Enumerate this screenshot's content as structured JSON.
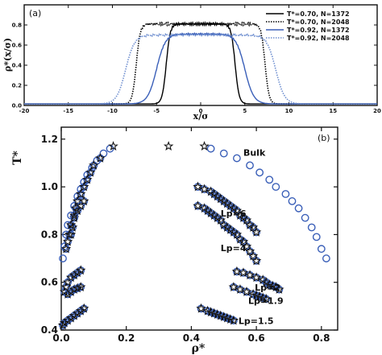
{
  "chart_data": [
    {
      "type": "line",
      "panel_label": "(a)",
      "xlabel": "x/σ",
      "ylabel": "ρ*(x/σ)",
      "xlim": [
        -20,
        20
      ],
      "ylim": [
        0,
        1.0
      ],
      "xticks": [
        "-20",
        "-15",
        "-10",
        "-5",
        "0",
        "5",
        "10",
        "15",
        "20"
      ],
      "yticks": [
        "0.0",
        "0.2",
        "0.4",
        "0.6",
        "0.8"
      ],
      "legend_position": "top-right",
      "series": [
        {
          "name": "T*=0.70, N=1372",
          "color": "#000000",
          "style": "solid",
          "plateau": 0.81,
          "x_left": -3.9,
          "x_right": 3.9,
          "width": 0.45,
          "noise": 0.012
        },
        {
          "name": "T*=0.70, N=2048",
          "color": "#000000",
          "style": "dotted",
          "plateau": 0.81,
          "x_left": -7.3,
          "x_right": 7.3,
          "width": 0.45,
          "noise": 0.012
        },
        {
          "name": "T*=0.92, N=1372",
          "color": "#3a5fb8",
          "style": "solid",
          "plateau": 0.71,
          "x_left": -5.0,
          "x_right": 5.0,
          "width": 1.0,
          "noise": 0.008
        },
        {
          "name": "T*=0.92, N=2048",
          "color": "#6f8fd0",
          "style": "dotted",
          "plateau": 0.7,
          "x_left": -8.5,
          "x_right": 8.5,
          "width": 1.0,
          "noise": 0.008
        }
      ]
    },
    {
      "type": "scatter",
      "panel_label": "(b)",
      "xlabel": "ρ*",
      "ylabel": "T*",
      "xlim": [
        0,
        0.85
      ],
      "ylim": [
        0.4,
        1.25
      ],
      "xticks": [
        "0.0",
        "0.2",
        "0.4",
        "0.6",
        "0.8"
      ],
      "yticks": [
        "0.4",
        "0.6",
        "0.8",
        "1.0",
        "1.2"
      ],
      "annotations": [
        {
          "text": "Bulk",
          "x": 0.56,
          "y": 1.13
        },
        {
          "text": "Lp=6",
          "x": 0.49,
          "y": 0.875
        },
        {
          "text": "Lp=4",
          "x": 0.49,
          "y": 0.73
        },
        {
          "text": "Lp=2",
          "x": 0.595,
          "y": 0.565
        },
        {
          "text": "Lp=1.9",
          "x": 0.575,
          "y": 0.51
        },
        {
          "text": "Lp=1.5",
          "x": 0.545,
          "y": 0.425
        }
      ],
      "series": [
        {
          "name": "Bulk",
          "marker": "circle",
          "color": "#3a5fb8",
          "points": [
            [
              0.005,
              0.7
            ],
            [
              0.01,
              0.75
            ],
            [
              0.015,
              0.8
            ],
            [
              0.02,
              0.84
            ],
            [
              0.03,
              0.88
            ],
            [
              0.04,
              0.92
            ],
            [
              0.05,
              0.96
            ],
            [
              0.06,
              0.99
            ],
            [
              0.07,
              1.02
            ],
            [
              0.08,
              1.05
            ],
            [
              0.095,
              1.08
            ],
            [
              0.11,
              1.11
            ],
            [
              0.13,
              1.14
            ],
            [
              0.15,
              1.16
            ],
            [
              0.46,
              1.16
            ],
            [
              0.5,
              1.14
            ],
            [
              0.54,
              1.12
            ],
            [
              0.58,
              1.09
            ],
            [
              0.61,
              1.06
            ],
            [
              0.64,
              1.03
            ],
            [
              0.66,
              1.0
            ],
            [
              0.69,
              0.97
            ],
            [
              0.71,
              0.94
            ],
            [
              0.73,
              0.91
            ],
            [
              0.75,
              0.87
            ],
            [
              0.77,
              0.83
            ],
            [
              0.785,
              0.79
            ],
            [
              0.8,
              0.74
            ],
            [
              0.815,
              0.7
            ]
          ]
        },
        {
          "name": "Bulk-star",
          "marker": "star",
          "color": "#111111",
          "points": [
            [
              0.16,
              1.17
            ],
            [
              0.33,
              1.17
            ],
            [
              0.44,
              1.17
            ]
          ]
        },
        {
          "name": "Lp=6",
          "marker": "circle-star",
          "color": "#3a5fb8",
          "points": [
            [
              0.03,
              0.8
            ],
            [
              0.035,
              0.83
            ],
            [
              0.04,
              0.87
            ],
            [
              0.045,
              0.91
            ],
            [
              0.05,
              0.94
            ],
            [
              0.06,
              0.97
            ],
            [
              0.07,
              1.0
            ],
            [
              0.08,
              1.03
            ],
            [
              0.09,
              1.06
            ],
            [
              0.1,
              1.09
            ],
            [
              0.12,
              1.12
            ],
            [
              0.42,
              1.0
            ],
            [
              0.44,
              0.99
            ],
            [
              0.46,
              0.98
            ],
            [
              0.47,
              0.97
            ],
            [
              0.48,
              0.96
            ],
            [
              0.49,
              0.95
            ],
            [
              0.5,
              0.94
            ],
            [
              0.51,
              0.93
            ],
            [
              0.52,
              0.92
            ],
            [
              0.53,
              0.91
            ],
            [
              0.54,
              0.9
            ],
            [
              0.55,
              0.88
            ],
            [
              0.56,
              0.87
            ],
            [
              0.57,
              0.86
            ],
            [
              0.58,
              0.84
            ],
            [
              0.59,
              0.83
            ],
            [
              0.6,
              0.81
            ]
          ]
        },
        {
          "name": "Lp=4",
          "marker": "circle-star",
          "color": "#3a5fb8",
          "points": [
            [
              0.015,
              0.74
            ],
            [
              0.02,
              0.77
            ],
            [
              0.025,
              0.8
            ],
            [
              0.03,
              0.84
            ],
            [
              0.04,
              0.88
            ],
            [
              0.05,
              0.9
            ],
            [
              0.06,
              0.92
            ],
            [
              0.07,
              0.94
            ],
            [
              0.42,
              0.92
            ],
            [
              0.44,
              0.91
            ],
            [
              0.45,
              0.9
            ],
            [
              0.46,
              0.89
            ],
            [
              0.47,
              0.88
            ],
            [
              0.48,
              0.87
            ],
            [
              0.49,
              0.86
            ],
            [
              0.5,
              0.84
            ],
            [
              0.51,
              0.83
            ],
            [
              0.52,
              0.82
            ],
            [
              0.53,
              0.81
            ],
            [
              0.54,
              0.8
            ],
            [
              0.55,
              0.78
            ],
            [
              0.56,
              0.77
            ],
            [
              0.57,
              0.75
            ],
            [
              0.58,
              0.73
            ],
            [
              0.59,
              0.71
            ],
            [
              0.6,
              0.69
            ]
          ]
        },
        {
          "name": "Lp=2",
          "marker": "circle-star",
          "color": "#3a5fb8",
          "points": [
            [
              0.01,
              0.56
            ],
            [
              0.015,
              0.58
            ],
            [
              0.02,
              0.6
            ],
            [
              0.03,
              0.62
            ],
            [
              0.04,
              0.63
            ],
            [
              0.05,
              0.64
            ],
            [
              0.06,
              0.65
            ],
            [
              0.54,
              0.645
            ],
            [
              0.56,
              0.64
            ],
            [
              0.58,
              0.63
            ],
            [
              0.6,
              0.62
            ],
            [
              0.62,
              0.61
            ],
            [
              0.63,
              0.6
            ],
            [
              0.64,
              0.59
            ],
            [
              0.65,
              0.585
            ],
            [
              0.66,
              0.58
            ],
            [
              0.67,
              0.57
            ]
          ]
        },
        {
          "name": "Lp=1.9",
          "marker": "circle-star",
          "color": "#3a5fb8",
          "points": [
            [
              0.02,
              0.55
            ],
            [
              0.03,
              0.56
            ],
            [
              0.04,
              0.57
            ],
            [
              0.05,
              0.575
            ],
            [
              0.06,
              0.58
            ],
            [
              0.53,
              0.58
            ],
            [
              0.55,
              0.57
            ],
            [
              0.57,
              0.56
            ],
            [
              0.59,
              0.55
            ],
            [
              0.6,
              0.545
            ],
            [
              0.61,
              0.54
            ],
            [
              0.62,
              0.535
            ],
            [
              0.63,
              0.53
            ]
          ]
        },
        {
          "name": "Lp=1.5",
          "marker": "circle-star",
          "color": "#3a5fb8",
          "points": [
            [
              0.005,
              0.42
            ],
            [
              0.01,
              0.43
            ],
            [
              0.02,
              0.44
            ],
            [
              0.03,
              0.45
            ],
            [
              0.04,
              0.46
            ],
            [
              0.05,
              0.47
            ],
            [
              0.06,
              0.48
            ],
            [
              0.07,
              0.49
            ],
            [
              0.43,
              0.49
            ],
            [
              0.45,
              0.48
            ],
            [
              0.46,
              0.475
            ],
            [
              0.47,
              0.47
            ],
            [
              0.48,
              0.465
            ],
            [
              0.49,
              0.46
            ],
            [
              0.5,
              0.455
            ],
            [
              0.51,
              0.45
            ],
            [
              0.52,
              0.445
            ],
            [
              0.53,
              0.44
            ]
          ]
        }
      ]
    }
  ]
}
